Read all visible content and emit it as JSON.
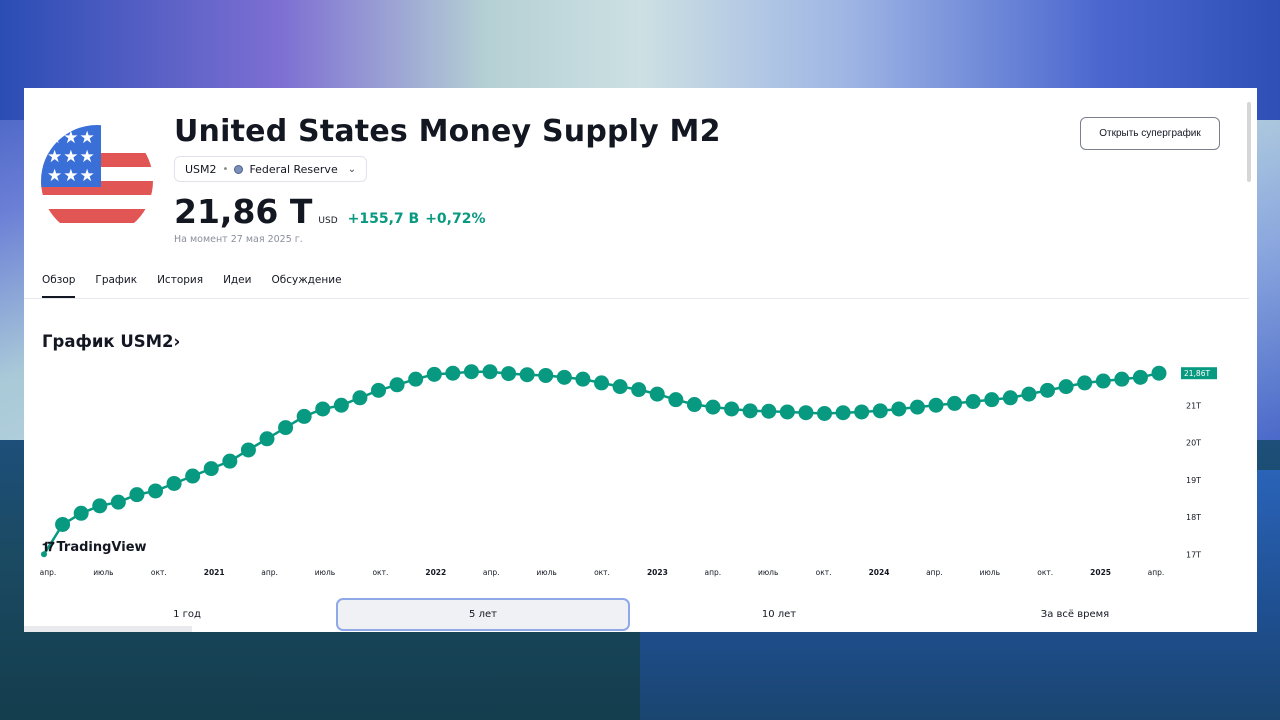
{
  "header": {
    "title": "United States Money Supply M2",
    "symbol": "USM2",
    "source": "Federal Reserve",
    "price": "21,86 T",
    "currency": "USD",
    "change_abs": "+155,7 B",
    "change_pct": "+0,72%",
    "as_of": "На момент 27 мая 2025 г.",
    "supergraph_button": "Открыть суперграфик"
  },
  "tabs": [
    "Обзор",
    "График",
    "История",
    "Идеи",
    "Обсуждение"
  ],
  "chart_section_title": "График USM2›",
  "logo_text": "TradingView",
  "ranges": [
    "1 год",
    "5 лет",
    "10 лет",
    "За всё время"
  ],
  "active_range": "5 лет",
  "chart_data": {
    "type": "line",
    "title": "",
    "xlabel": "",
    "ylabel": "",
    "ylim": [
      16.9,
      22.0
    ],
    "last_value_label": "21,86T",
    "y_ticks": [
      {
        "value": 21,
        "label": "21T"
      },
      {
        "value": 20,
        "label": "20T"
      },
      {
        "value": 19,
        "label": "19T"
      },
      {
        "value": 18,
        "label": "18T"
      },
      {
        "value": 17,
        "label": "17T"
      }
    ],
    "x_ticks": [
      "апр.",
      "июль",
      "окт.",
      "2021",
      "апр.",
      "июль",
      "окт.",
      "2022",
      "апр.",
      "июль",
      "окт.",
      "2023",
      "апр.",
      "июль",
      "окт.",
      "2024",
      "апр.",
      "июль",
      "окт.",
      "2025",
      "апр."
    ],
    "series": [
      {
        "values": [
          17.0,
          17.8,
          18.1,
          18.3,
          18.4,
          18.6,
          18.7,
          18.9,
          19.1,
          19.3,
          19.5,
          19.8,
          20.1,
          20.4,
          20.7,
          20.9,
          21.0,
          21.2,
          21.4,
          21.55,
          21.7,
          21.83,
          21.86,
          21.9,
          21.9,
          21.85,
          21.82,
          21.8,
          21.75,
          21.7,
          21.6,
          21.5,
          21.42,
          21.3,
          21.15,
          21.02,
          20.95,
          20.9,
          20.85,
          20.84,
          20.82,
          20.8,
          20.78,
          20.8,
          20.82,
          20.85,
          20.9,
          20.95,
          21.0,
          21.05,
          21.1,
          21.15,
          21.2,
          21.3,
          21.4,
          21.5,
          21.6,
          21.65,
          21.7,
          21.75,
          21.86
        ]
      }
    ]
  }
}
